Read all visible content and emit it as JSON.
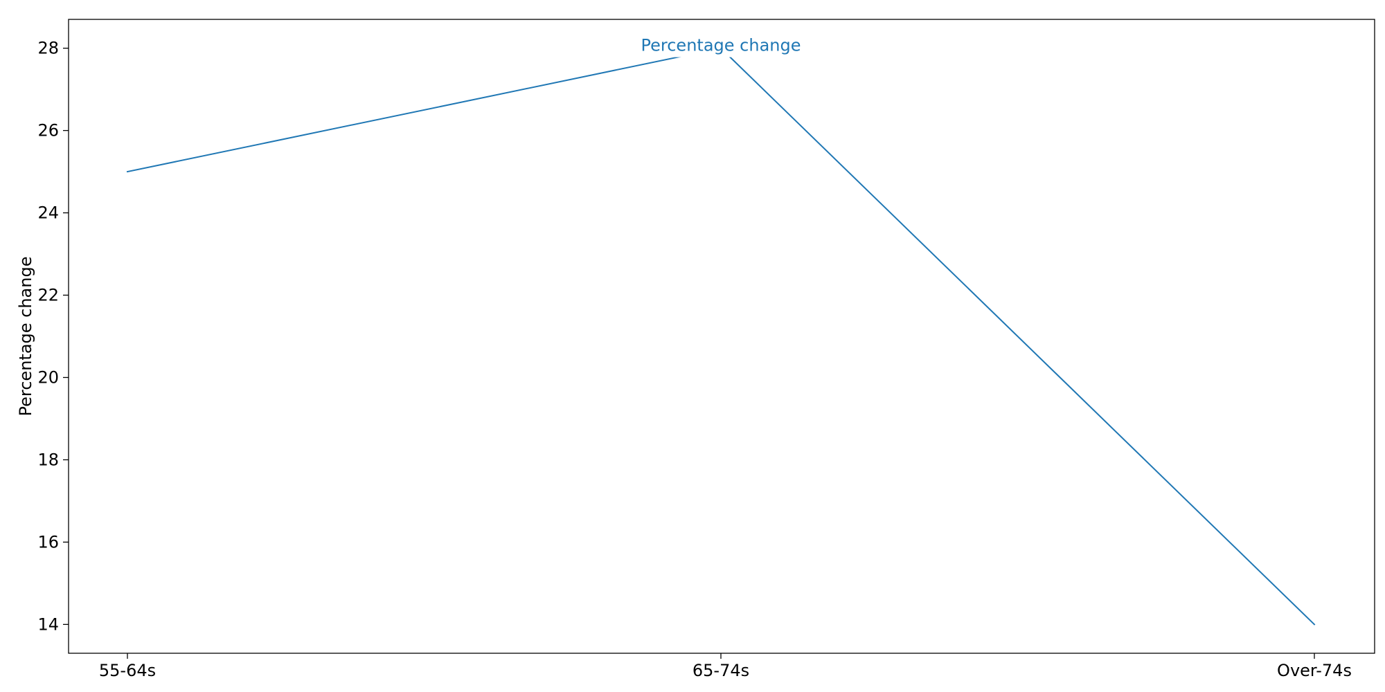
{
  "chart_data": {
    "type": "line",
    "categories": [
      "55-64s",
      "65-74s",
      "Over-74s"
    ],
    "series": [
      {
        "name": "Percentage change",
        "values": [
          25,
          28,
          14
        ],
        "color": "#1f77b4"
      }
    ],
    "ylabel": "Percentage change",
    "xlabel": "",
    "ylim": [
      13.3,
      28.7
    ],
    "yticks": [
      14,
      16,
      18,
      20,
      22,
      24,
      26,
      28
    ],
    "grid": false,
    "legend": "none",
    "annotations": [
      {
        "text": "Percentage change",
        "category": "65-74s",
        "value": 28
      }
    ]
  }
}
